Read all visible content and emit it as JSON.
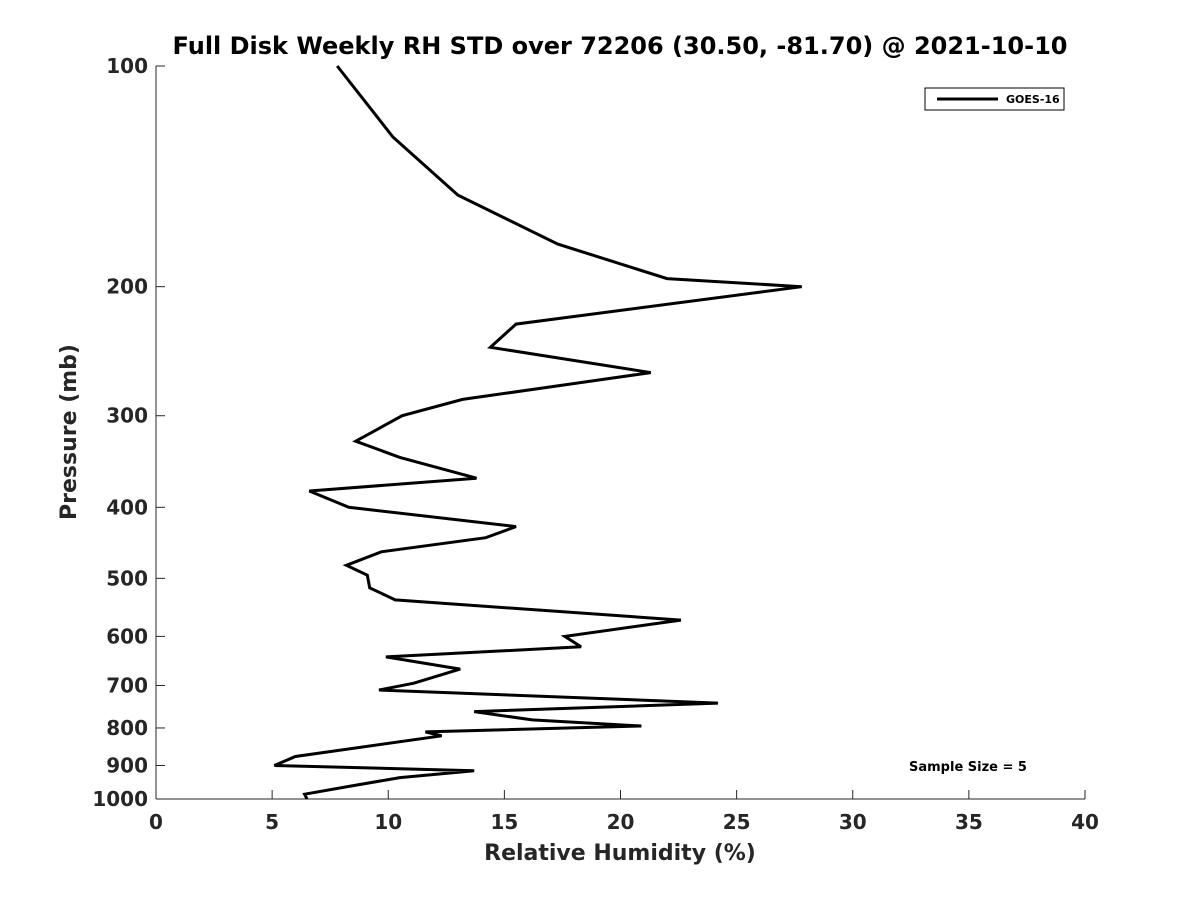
{
  "chart_data": {
    "type": "line",
    "title": "Full Disk Weekly RH STD over 72206 (30.50, -81.70) @ 2021-10-10",
    "xlabel": "Relative Humidity (%)",
    "ylabel": "Pressure (mb)",
    "xlim": [
      0,
      40
    ],
    "ylim": [
      100,
      1000
    ],
    "y_scale": "log",
    "y_reversed": true,
    "grid": false,
    "legend_position": "top-right",
    "x_ticks": [
      0,
      5,
      10,
      15,
      20,
      25,
      30,
      35,
      40
    ],
    "x_tick_labels": [
      "0",
      "5",
      "10",
      "15",
      "20",
      "25",
      "30",
      "35",
      "40"
    ],
    "y_ticks": [
      100,
      200,
      300,
      400,
      500,
      600,
      700,
      800,
      900,
      1000
    ],
    "y_tick_labels": [
      "100",
      "200",
      "300",
      "400",
      "500",
      "600",
      "700",
      "800",
      "900",
      "1000"
    ],
    "series": [
      {
        "name": "GOES-16",
        "color": "#000000",
        "x": [
          7.8,
          10.2,
          13.0,
          17.3,
          22.0,
          27.8,
          15.5,
          14.4,
          21.3,
          13.2,
          10.6,
          8.6,
          10.5,
          13.8,
          6.6,
          8.3,
          15.5,
          14.2,
          9.7,
          8.2,
          9.1,
          9.2,
          10.3,
          22.6,
          17.6,
          18.3,
          9.9,
          13.1,
          11.1,
          9.6,
          24.2,
          13.7,
          16.2,
          20.9,
          11.6,
          12.3,
          6.0,
          5.1,
          13.7,
          10.5,
          8.4,
          6.4,
          6.5
        ],
        "y": [
          100,
          125,
          150,
          175,
          195,
          200,
          225,
          242,
          262,
          285,
          300,
          325,
          342,
          365,
          380,
          400,
          425,
          440,
          460,
          480,
          495,
          515,
          535,
          570,
          600,
          620,
          640,
          665,
          695,
          710,
          740,
          760,
          780,
          795,
          810,
          820,
          875,
          900,
          915,
          935,
          960,
          985,
          1000
        ]
      }
    ],
    "annotations": [
      "Sample Size = 5"
    ]
  }
}
